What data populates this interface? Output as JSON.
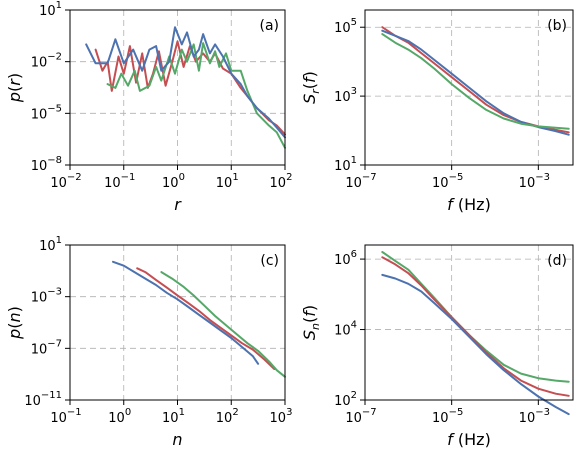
{
  "chart_data": [
    {
      "panel": "(a)",
      "type": "line",
      "xscale": "log",
      "yscale": "log",
      "xlim_exp": [
        -2,
        2
      ],
      "ylim_exp": [
        -8,
        1
      ],
      "xticks": [
        "10",
        "10",
        "10",
        "10",
        "10"
      ],
      "xtick_exps": [
        "−2",
        "−1",
        "0",
        "1",
        "2"
      ],
      "yticks": [
        "10",
        "10",
        "10",
        "10"
      ],
      "ytick_exps": [
        "−8",
        "−5",
        "−2",
        "1"
      ],
      "xlabel": "r",
      "ylabel": "p(r)",
      "grid": true,
      "series": [
        {
          "color": "#c44e52",
          "points": [
            [
              0.03,
              0.05
            ],
            [
              0.04,
              0.003
            ],
            [
              0.05,
              0.01
            ],
            [
              0.06,
              0.0002
            ],
            [
              0.08,
              0.02
            ],
            [
              0.1,
              0.002
            ],
            [
              0.13,
              0.08
            ],
            [
              0.17,
              0.0006
            ],
            [
              0.22,
              0.03
            ],
            [
              0.28,
              0.0003
            ],
            [
              0.35,
              0.002
            ],
            [
              0.45,
              0.04
            ],
            [
              0.6,
              0.0004
            ],
            [
              0.8,
              0.01
            ],
            [
              1.0,
              0.15
            ],
            [
              1.3,
              0.005
            ],
            [
              1.7,
              0.08
            ],
            [
              2.2,
              0.01
            ],
            [
              3,
              0.03
            ],
            [
              4,
              0.01
            ],
            [
              5,
              0.03
            ],
            [
              7,
              0.004
            ],
            [
              10,
              0.002
            ],
            [
              15,
              0.0003
            ],
            [
              20,
              0.0001
            ],
            [
              30,
              2e-05
            ],
            [
              50,
              4e-06
            ],
            [
              70,
              2e-06
            ],
            [
              100,
              6e-07
            ]
          ]
        },
        {
          "color": "#55a868",
          "points": [
            [
              0.05,
              0.0005
            ],
            [
              0.07,
              0.0003
            ],
            [
              0.09,
              0.002
            ],
            [
              0.12,
              0.0004
            ],
            [
              0.16,
              0.003
            ],
            [
              0.2,
              0.0002
            ],
            [
              0.3,
              0.0004
            ],
            [
              0.4,
              0.005
            ],
            [
              0.5,
              0.0008
            ],
            [
              0.7,
              0.02
            ],
            [
              0.9,
              0.002
            ],
            [
              1.2,
              0.05
            ],
            [
              1.5,
              0.01
            ],
            [
              2,
              0.1
            ],
            [
              2.5,
              0.003
            ],
            [
              3,
              0.12
            ],
            [
              4,
              0.008
            ],
            [
              5,
              0.04
            ],
            [
              6,
              0.005
            ],
            [
              8,
              0.03
            ],
            [
              10,
              0.003
            ],
            [
              15,
              0.003
            ],
            [
              20,
              0.0002
            ],
            [
              30,
              1e-05
            ],
            [
              50,
              2e-06
            ],
            [
              70,
              8e-07
            ],
            [
              100,
              1e-07
            ]
          ]
        },
        {
          "color": "#4c72b0",
          "points": [
            [
              0.02,
              0.1
            ],
            [
              0.03,
              0.008
            ],
            [
              0.05,
              0.008
            ],
            [
              0.07,
              0.2
            ],
            [
              0.1,
              0.008
            ],
            [
              0.15,
              0.05
            ],
            [
              0.22,
              0.003
            ],
            [
              0.3,
              0.05
            ],
            [
              0.4,
              0.08
            ],
            [
              0.5,
              0.003
            ],
            [
              0.7,
              0.01
            ],
            [
              0.9,
              1.0
            ],
            [
              1.2,
              0.1
            ],
            [
              1.5,
              0.5
            ],
            [
              2,
              0.02
            ],
            [
              2.5,
              0.05
            ],
            [
              3,
              0.4
            ],
            [
              4,
              0.03
            ],
            [
              5,
              0.1
            ],
            [
              7,
              0.02
            ],
            [
              10,
              0.002
            ],
            [
              15,
              0.0005
            ],
            [
              20,
              0.0001
            ],
            [
              30,
              2e-05
            ],
            [
              50,
              5e-06
            ],
            [
              70,
              1.5e-06
            ],
            [
              100,
              4e-07
            ]
          ]
        }
      ]
    },
    {
      "panel": "(b)",
      "type": "line",
      "xscale": "log",
      "yscale": "log",
      "xlim_exp": [
        -7,
        -2.2
      ],
      "ylim_exp": [
        1,
        5.5
      ],
      "xticks": [
        "10",
        "10",
        "10"
      ],
      "xtick_exps": [
        "−7",
        "−5",
        "−3"
      ],
      "yticks": [
        "10",
        "10",
        "10"
      ],
      "ytick_exps": [
        "1",
        "3",
        "5"
      ],
      "xlabel": "f (Hz)",
      "ylabel": "S_r(f)",
      "grid": true,
      "series": [
        {
          "color": "#c44e52",
          "points": [
            [
              -6.6,
              5.0
            ],
            [
              -6.3,
              4.75
            ],
            [
              -6.0,
              4.55
            ],
            [
              -5.7,
              4.25
            ],
            [
              -5.4,
              3.95
            ],
            [
              -5.0,
              3.55
            ],
            [
              -4.6,
              3.15
            ],
            [
              -4.2,
              2.75
            ],
            [
              -3.8,
              2.45
            ],
            [
              -3.4,
              2.25
            ],
            [
              -3.0,
              2.12
            ],
            [
              -2.6,
              2.02
            ],
            [
              -2.3,
              1.95
            ]
          ]
        },
        {
          "color": "#4c72b0",
          "points": [
            [
              -6.6,
              4.9
            ],
            [
              -6.3,
              4.75
            ],
            [
              -6.0,
              4.6
            ],
            [
              -5.7,
              4.35
            ],
            [
              -5.4,
              4.05
            ],
            [
              -5.0,
              3.65
            ],
            [
              -4.6,
              3.25
            ],
            [
              -4.2,
              2.85
            ],
            [
              -3.8,
              2.5
            ],
            [
              -3.4,
              2.25
            ],
            [
              -3.0,
              2.1
            ],
            [
              -2.6,
              1.98
            ],
            [
              -2.3,
              1.88
            ]
          ]
        },
        {
          "color": "#55a868",
          "points": [
            [
              -6.6,
              4.8
            ],
            [
              -6.3,
              4.55
            ],
            [
              -6.0,
              4.35
            ],
            [
              -5.7,
              4.1
            ],
            [
              -5.4,
              3.8
            ],
            [
              -5.0,
              3.35
            ],
            [
              -4.6,
              2.95
            ],
            [
              -4.2,
              2.6
            ],
            [
              -3.8,
              2.35
            ],
            [
              -3.4,
              2.2
            ],
            [
              -3.0,
              2.12
            ],
            [
              -2.6,
              2.08
            ],
            [
              -2.3,
              2.05
            ]
          ]
        }
      ]
    },
    {
      "panel": "(c)",
      "type": "line",
      "xscale": "log",
      "yscale": "log",
      "xlim_exp": [
        -1,
        3
      ],
      "ylim_exp": [
        -11,
        1
      ],
      "xticks": [
        "10",
        "10",
        "10",
        "10",
        "10"
      ],
      "xtick_exps": [
        "−1",
        "0",
        "1",
        "2",
        "3"
      ],
      "yticks": [
        "10",
        "10",
        "10",
        "10"
      ],
      "ytick_exps": [
        "−11",
        "−7",
        "−3",
        "1"
      ],
      "xlabel": "n",
      "ylabel": "p(n)",
      "grid": true,
      "series": [
        {
          "color": "#4c72b0",
          "points": [
            [
              -0.2,
              -0.3
            ],
            [
              0.0,
              -0.6
            ],
            [
              0.2,
              -1.1
            ],
            [
              0.4,
              -1.6
            ],
            [
              0.6,
              -2.1
            ],
            [
              0.8,
              -2.7
            ],
            [
              1.0,
              -3.2
            ],
            [
              1.2,
              -3.8
            ],
            [
              1.4,
              -4.4
            ],
            [
              1.6,
              -5.0
            ],
            [
              1.8,
              -5.6
            ],
            [
              2.0,
              -6.2
            ],
            [
              2.2,
              -6.9
            ],
            [
              2.4,
              -7.6
            ],
            [
              2.5,
              -8.2
            ]
          ]
        },
        {
          "color": "#c44e52",
          "points": [
            [
              0.25,
              -0.8
            ],
            [
              0.4,
              -1.1
            ],
            [
              0.6,
              -1.7
            ],
            [
              0.8,
              -2.3
            ],
            [
              1.0,
              -2.9
            ],
            [
              1.2,
              -3.5
            ],
            [
              1.4,
              -4.1
            ],
            [
              1.6,
              -4.8
            ],
            [
              1.8,
              -5.4
            ],
            [
              2.0,
              -6.0
            ],
            [
              2.2,
              -6.6
            ],
            [
              2.4,
              -7.1
            ],
            [
              2.6,
              -7.8
            ],
            [
              2.8,
              -8.6
            ]
          ]
        },
        {
          "color": "#55a868",
          "points": [
            [
              0.7,
              -1.1
            ],
            [
              0.9,
              -1.6
            ],
            [
              1.1,
              -2.2
            ],
            [
              1.3,
              -2.9
            ],
            [
              1.5,
              -3.7
            ],
            [
              1.7,
              -4.5
            ],
            [
              1.9,
              -5.2
            ],
            [
              2.1,
              -5.9
            ],
            [
              2.3,
              -6.6
            ],
            [
              2.5,
              -7.2
            ],
            [
              2.7,
              -8.0
            ],
            [
              2.85,
              -8.7
            ],
            [
              3.0,
              -9.2
            ]
          ]
        }
      ]
    },
    {
      "panel": "(d)",
      "type": "line",
      "xscale": "log",
      "yscale": "log",
      "xlim_exp": [
        -7,
        -2.2
      ],
      "ylim_exp": [
        2,
        6.4
      ],
      "xticks": [
        "10",
        "10",
        "10"
      ],
      "xtick_exps": [
        "−7",
        "−5",
        "−3"
      ],
      "yticks": [
        "10",
        "10",
        "10"
      ],
      "ytick_exps": [
        "2",
        "4",
        "6"
      ],
      "xlabel": "f (Hz)",
      "ylabel": "S_n(f)",
      "grid": true,
      "series": [
        {
          "color": "#55a868",
          "points": [
            [
              -6.6,
              6.2
            ],
            [
              -6.3,
              5.95
            ],
            [
              -6.0,
              5.7
            ],
            [
              -5.7,
              5.3
            ],
            [
              -5.4,
              4.9
            ],
            [
              -5.0,
              4.35
            ],
            [
              -4.6,
              3.85
            ],
            [
              -4.2,
              3.4
            ],
            [
              -3.8,
              3.0
            ],
            [
              -3.4,
              2.75
            ],
            [
              -3.0,
              2.62
            ],
            [
              -2.6,
              2.55
            ],
            [
              -2.3,
              2.52
            ]
          ]
        },
        {
          "color": "#c44e52",
          "points": [
            [
              -6.6,
              6.05
            ],
            [
              -6.3,
              5.85
            ],
            [
              -6.0,
              5.6
            ],
            [
              -5.7,
              5.25
            ],
            [
              -5.4,
              4.85
            ],
            [
              -5.0,
              4.35
            ],
            [
              -4.6,
              3.85
            ],
            [
              -4.2,
              3.35
            ],
            [
              -3.8,
              2.9
            ],
            [
              -3.4,
              2.55
            ],
            [
              -3.0,
              2.32
            ],
            [
              -2.6,
              2.18
            ],
            [
              -2.3,
              2.12
            ]
          ]
        },
        {
          "color": "#4c72b0",
          "points": [
            [
              -6.6,
              5.55
            ],
            [
              -6.3,
              5.45
            ],
            [
              -6.0,
              5.3
            ],
            [
              -5.7,
              5.08
            ],
            [
              -5.4,
              4.75
            ],
            [
              -5.0,
              4.3
            ],
            [
              -4.6,
              3.8
            ],
            [
              -4.2,
              3.3
            ],
            [
              -3.8,
              2.85
            ],
            [
              -3.4,
              2.45
            ],
            [
              -3.0,
              2.1
            ],
            [
              -2.6,
              1.8
            ],
            [
              -2.3,
              1.6
            ]
          ]
        }
      ]
    }
  ]
}
